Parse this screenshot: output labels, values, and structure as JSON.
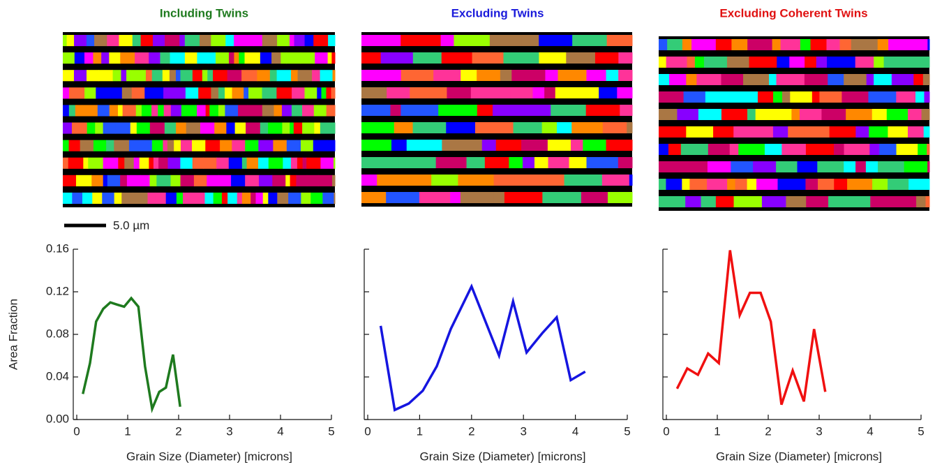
{
  "scale_bar_label": "5.0 µm",
  "chart_data": [
    {
      "type": "line",
      "title": "Including Twins",
      "title_color": "#1e7a1e",
      "color": "#1e7a1e",
      "x": [
        0.12,
        0.26,
        0.38,
        0.52,
        0.66,
        0.79,
        0.93,
        1.07,
        1.21,
        1.34,
        1.48,
        1.62,
        1.75,
        1.89,
        2.03
      ],
      "values": [
        0.024,
        0.053,
        0.092,
        0.104,
        0.11,
        0.108,
        0.106,
        0.114,
        0.106,
        0.05,
        0.01,
        0.026,
        0.03,
        0.061,
        0.012
      ],
      "xlim": [
        0,
        5
      ],
      "xticks": [
        0,
        1,
        2,
        3,
        4,
        5
      ],
      "ylim": [
        0,
        0.16
      ],
      "yticks": [
        {
          "value": 0,
          "label": "0.00"
        },
        {
          "value": 0.04,
          "label": "0.04"
        },
        {
          "value": 0.08,
          "label": "0.08"
        },
        {
          "value": 0.12,
          "label": "0.12"
        },
        {
          "value": 0.16,
          "label": "0.16"
        }
      ],
      "xlabel": "Grain Size (Diameter) [microns]",
      "ylabel": "Area Fraction"
    },
    {
      "type": "line",
      "title": "Excluding Twins",
      "title_color": "#1a1adb",
      "color": "#1515e0",
      "x": [
        0.25,
        0.52,
        0.79,
        1.06,
        1.33,
        1.6,
        2.0,
        2.53,
        2.8,
        3.06,
        3.36,
        3.64,
        3.91,
        4.19
      ],
      "values": [
        0.088,
        0.009,
        0.015,
        0.027,
        0.05,
        0.085,
        0.125,
        0.06,
        0.111,
        0.063,
        0.081,
        0.096,
        0.037,
        0.045
      ],
      "xlim": [
        0,
        5
      ],
      "xticks": [
        0,
        1,
        2,
        3,
        4,
        5
      ],
      "ylim": [
        0,
        0.16
      ],
      "yticks": [
        0,
        0.04,
        0.08,
        0.12,
        0.16
      ],
      "xlabel": "Grain Size (Diameter) [microns]"
    },
    {
      "type": "line",
      "title": "Excluding Coherent Twins",
      "title_color": "#e01010",
      "color": "#f01010",
      "x": [
        0.21,
        0.41,
        0.62,
        0.82,
        1.03,
        1.25,
        1.44,
        1.64,
        1.85,
        2.05,
        2.26,
        2.48,
        2.7,
        2.9,
        3.12
      ],
      "values": [
        0.029,
        0.048,
        0.042,
        0.062,
        0.053,
        0.159,
        0.098,
        0.119,
        0.119,
        0.092,
        0.014,
        0.046,
        0.017,
        0.085,
        0.026
      ],
      "xlim": [
        0,
        5
      ],
      "xticks": [
        0,
        1,
        2,
        3,
        4,
        5
      ],
      "ylim": [
        0,
        0.16
      ],
      "yticks": [
        0,
        0.04,
        0.08,
        0.12,
        0.16
      ],
      "xlabel": "Grain Size (Diameter) [microns]"
    }
  ]
}
